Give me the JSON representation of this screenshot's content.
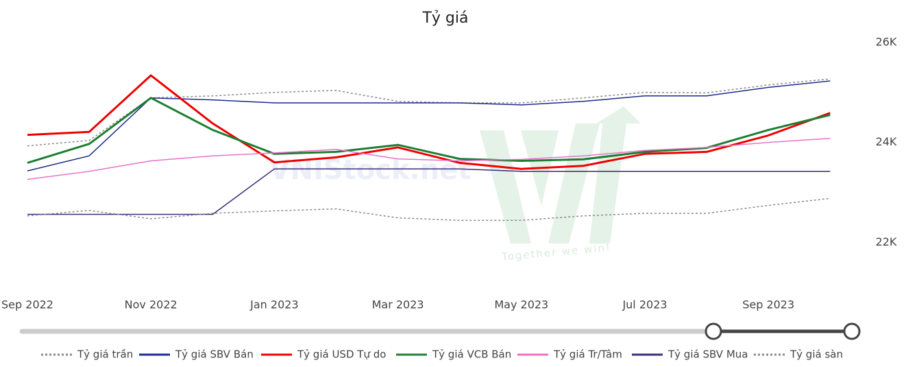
{
  "chart_data": {
    "type": "line",
    "title": "Tỷ giá",
    "watermark": "VNIStock.net",
    "watermark_slogan": "Together we win!",
    "x": [
      "2022-09",
      "2022-10",
      "2022-11",
      "2022-12",
      "2023-01",
      "2023-02",
      "2023-03",
      "2023-04",
      "2023-05",
      "2023-06",
      "2023-07",
      "2023-08",
      "2023-09",
      "2023-10"
    ],
    "xticks": [
      {
        "value": "2022-09",
        "label": "Sep 2022"
      },
      {
        "value": "2022-11",
        "label": "Nov 2022"
      },
      {
        "value": "2023-01",
        "label": "Jan 2023"
      },
      {
        "value": "2023-03",
        "label": "Mar 2023"
      },
      {
        "value": "2023-05",
        "label": "May 2023"
      },
      {
        "value": "2023-07",
        "label": "Jul 2023"
      },
      {
        "value": "2023-09",
        "label": "Sep 2023"
      }
    ],
    "ylim": [
      21400,
      26300
    ],
    "yticks": [
      {
        "value": 22000,
        "label": "22K"
      },
      {
        "value": 24000,
        "label": "24K"
      },
      {
        "value": 26000,
        "label": "26K"
      }
    ],
    "series": [
      {
        "name": "Tỷ giá trần",
        "color": "#888888",
        "dashed": true,
        "line_width": 1.5,
        "values": [
          23930,
          24040,
          24890,
          24930,
          25000,
          25040,
          24820,
          24790,
          24790,
          24890,
          25000,
          24990,
          25150,
          25270
        ]
      },
      {
        "name": "Tỷ giá SBV Bán",
        "color": "#1a2a8c",
        "dashed": false,
        "line_width": 1.5,
        "values": [
          23430,
          23730,
          24890,
          24850,
          24790,
          24790,
          24790,
          24790,
          24750,
          24820,
          24930,
          24930,
          25100,
          25230
        ]
      },
      {
        "name": "Tỷ giá USD Tự do",
        "color": "#ee0000",
        "dashed": false,
        "line_width": 3,
        "values": [
          24150,
          24210,
          25340,
          24380,
          23600,
          23700,
          23900,
          23590,
          23470,
          23530,
          23770,
          23810,
          24140,
          24590
        ]
      },
      {
        "name": "Tỷ giá VCB Bán",
        "color": "#1e7d32",
        "dashed": false,
        "line_width": 3,
        "values": [
          23590,
          23970,
          24890,
          24250,
          23770,
          23810,
          23950,
          23670,
          23630,
          23660,
          23810,
          23890,
          24250,
          24550
        ]
      },
      {
        "name": "Tỷ giá Tr/Tâm",
        "color": "#e872c8",
        "dashed": false,
        "line_width": 1.5,
        "values": [
          23260,
          23420,
          23630,
          23730,
          23790,
          23860,
          23670,
          23630,
          23660,
          23730,
          23840,
          23900,
          24000,
          24080
        ]
      },
      {
        "name": "Tỷ giá SBV Mua",
        "color": "#3c2a78",
        "dashed": false,
        "line_width": 1.5,
        "values": [
          22560,
          22560,
          22560,
          22560,
          23470,
          23470,
          23470,
          23470,
          23420,
          23420,
          23420,
          23420,
          23420,
          23420
        ]
      },
      {
        "name": "Tỷ giá sàn",
        "color": "#888888",
        "dashed": true,
        "line_width": 1.5,
        "values": [
          22530,
          22640,
          22470,
          22580,
          22630,
          22670,
          22490,
          22440,
          22440,
          22530,
          22580,
          22580,
          22740,
          22880
        ]
      }
    ]
  }
}
